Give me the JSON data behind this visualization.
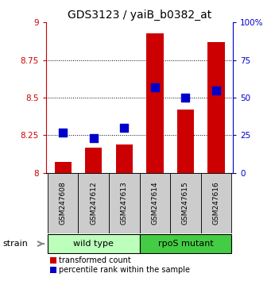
{
  "title": "GDS3123 / yaiB_b0382_at",
  "samples": [
    "GSM247608",
    "GSM247612",
    "GSM247613",
    "GSM247614",
    "GSM247615",
    "GSM247616"
  ],
  "groups": [
    "wild type",
    "wild type",
    "wild type",
    "rpoS mutant",
    "rpoS mutant",
    "rpoS mutant"
  ],
  "transformed_counts": [
    8.07,
    8.17,
    8.19,
    8.93,
    8.42,
    8.87
  ],
  "percentile_ranks": [
    27,
    23,
    30,
    57,
    50,
    55
  ],
  "ylim_left": [
    8.0,
    9.0
  ],
  "ylim_right": [
    0,
    100
  ],
  "yticks_left": [
    8.0,
    8.25,
    8.5,
    8.75,
    9.0
  ],
  "yticks_right": [
    0,
    25,
    50,
    75,
    100
  ],
  "ytick_labels_left": [
    "8",
    "8.25",
    "8.5",
    "8.75",
    "9"
  ],
  "ytick_labels_right": [
    "0",
    "25",
    "50",
    "75",
    "100%"
  ],
  "bar_color": "#cc0000",
  "dot_color": "#0000cc",
  "wild_type_color": "#bbffbb",
  "rpos_mutant_color": "#44cc44",
  "label_color_left": "#cc0000",
  "label_color_right": "#0000cc",
  "bar_width": 0.55,
  "dot_size": 45,
  "strain_label": "strain",
  "legend_items": [
    "transformed count",
    "percentile rank within the sample"
  ],
  "sample_box_color": "#cccccc",
  "gridline_ticks": [
    8.25,
    8.5,
    8.75
  ]
}
